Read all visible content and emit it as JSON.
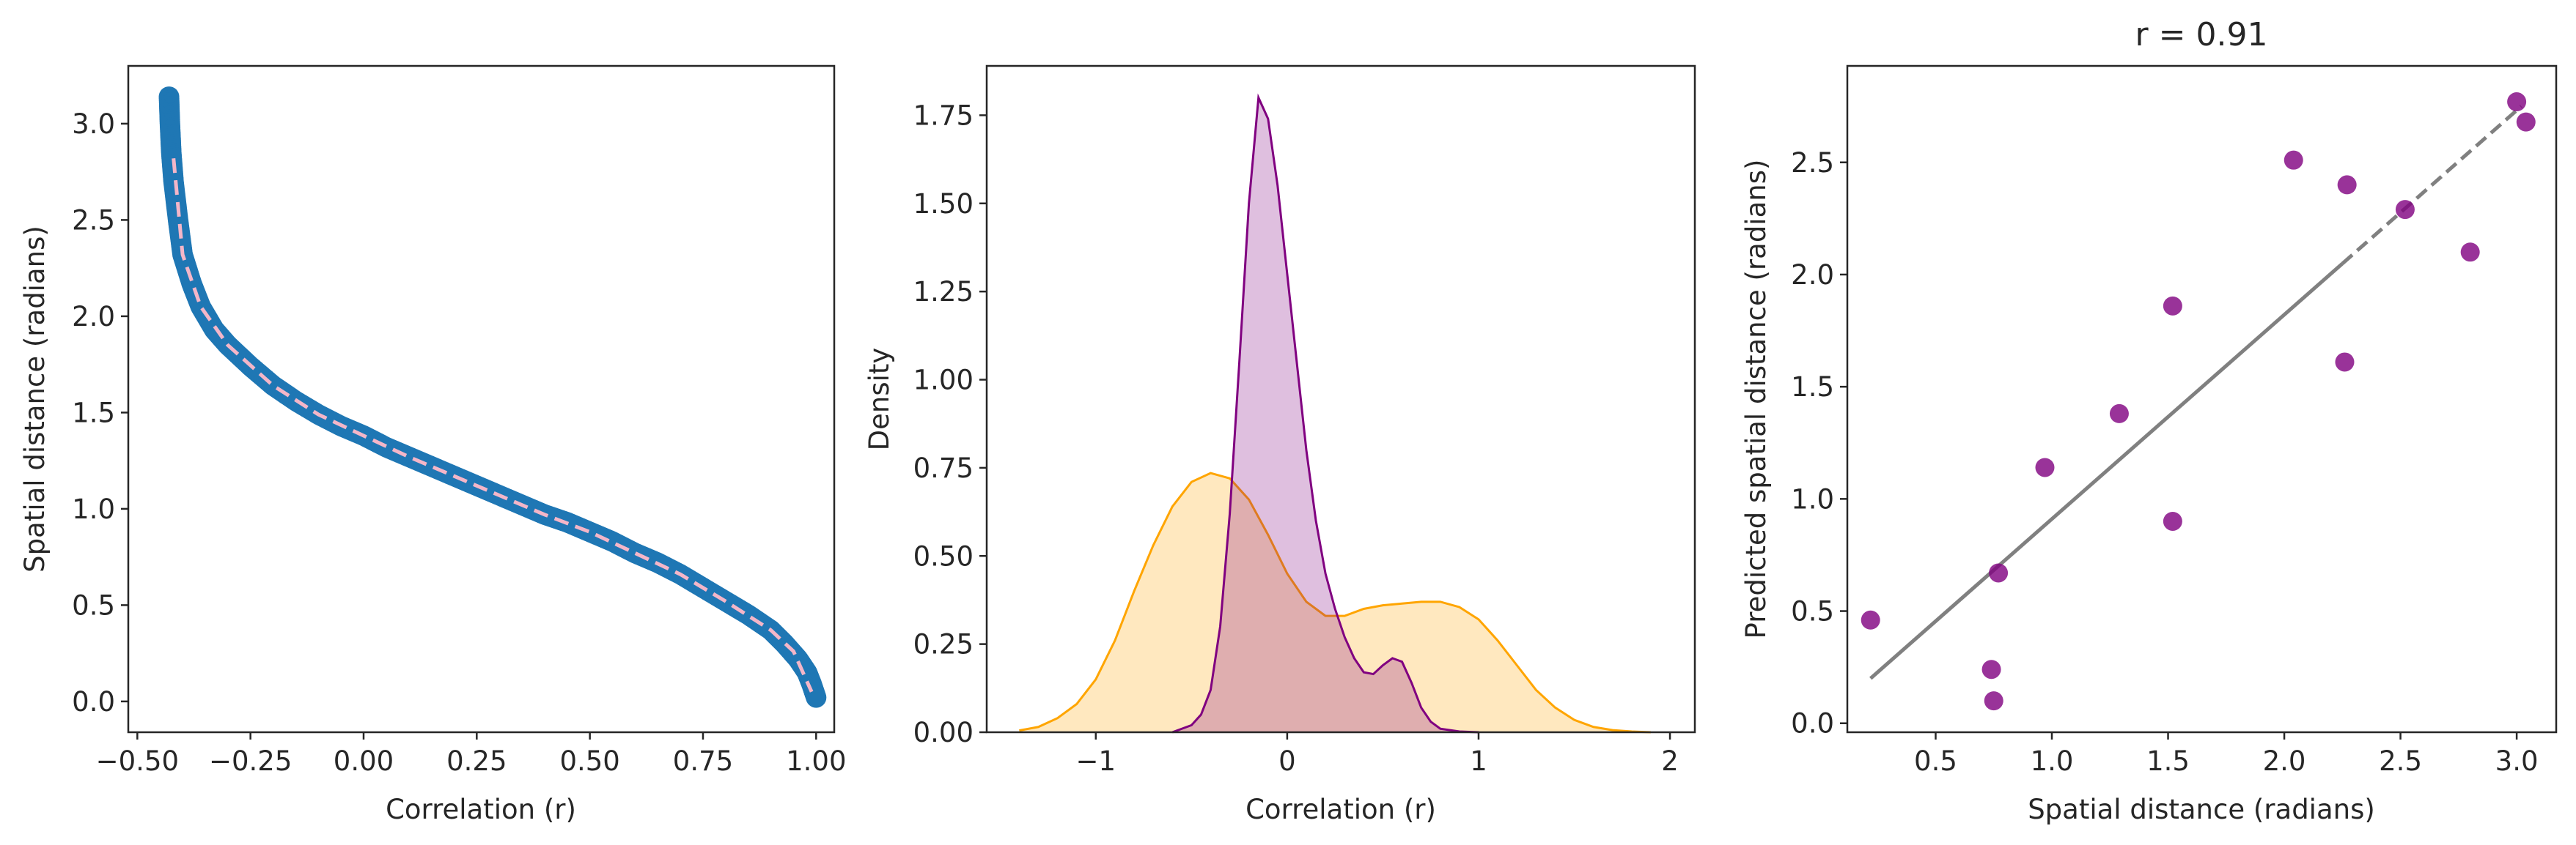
{
  "chart_data": [
    {
      "type": "scatter",
      "title": "",
      "xlabel": "Correlation (r)",
      "ylabel": "Spatial distance (radians)",
      "xlim": [
        -0.52,
        1.04
      ],
      "ylim": [
        -0.16,
        3.3
      ],
      "xticks": [
        -0.5,
        -0.25,
        0.0,
        0.25,
        0.5,
        0.75,
        1.0
      ],
      "xtick_labels": [
        "−0.50",
        "−0.25",
        "0.00",
        "0.25",
        "0.50",
        "0.75",
        "1.00"
      ],
      "yticks": [
        0.0,
        0.5,
        1.0,
        1.5,
        2.0,
        2.5,
        3.0
      ],
      "ytick_labels": [
        "0.0",
        "0.5",
        "1.0",
        "1.5",
        "2.0",
        "2.5",
        "3.0"
      ],
      "grid": false,
      "series": [
        {
          "kind": "scatter",
          "color": "#1f77b4",
          "x": [
            -0.43,
            -0.428,
            -0.425,
            -0.42,
            -0.41,
            -0.4,
            -0.38,
            -0.36,
            -0.33,
            -0.3,
            -0.25,
            -0.2,
            -0.15,
            -0.1,
            -0.05,
            0.0,
            0.05,
            0.1,
            0.15,
            0.2,
            0.25,
            0.3,
            0.35,
            0.4,
            0.45,
            0.5,
            0.55,
            0.6,
            0.65,
            0.7,
            0.75,
            0.8,
            0.85,
            0.9,
            0.93,
            0.96,
            0.98,
            0.99,
            1.0
          ],
          "y": [
            3.14,
            3.0,
            2.85,
            2.7,
            2.5,
            2.32,
            2.17,
            2.05,
            1.93,
            1.85,
            1.74,
            1.64,
            1.56,
            1.49,
            1.43,
            1.38,
            1.32,
            1.27,
            1.22,
            1.17,
            1.12,
            1.07,
            1.02,
            0.97,
            0.93,
            0.88,
            0.83,
            0.77,
            0.72,
            0.66,
            0.59,
            0.52,
            0.45,
            0.37,
            0.3,
            0.22,
            0.15,
            0.09,
            0.02
          ]
        },
        {
          "kind": "line",
          "style": "dashed",
          "color": "#f4b6c8",
          "x": [
            -0.42,
            -0.4,
            -0.36,
            -0.3,
            -0.2,
            -0.1,
            0.0,
            0.1,
            0.2,
            0.3,
            0.4,
            0.5,
            0.6,
            0.7,
            0.8,
            0.9,
            0.95,
            0.99
          ],
          "y": [
            2.82,
            2.32,
            2.05,
            1.85,
            1.64,
            1.49,
            1.38,
            1.27,
            1.17,
            1.07,
            0.97,
            0.88,
            0.77,
            0.66,
            0.52,
            0.37,
            0.26,
            0.05
          ]
        }
      ]
    },
    {
      "type": "area",
      "title": "",
      "xlabel": "Correlation (r)",
      "ylabel": "Density",
      "xlim": [
        -1.57,
        2.13
      ],
      "ylim": [
        0,
        1.89
      ],
      "xticks": [
        -1,
        0,
        1,
        2
      ],
      "xtick_labels": [
        "−1",
        "0",
        "1",
        "2"
      ],
      "yticks": [
        0.0,
        0.25,
        0.5,
        0.75,
        1.0,
        1.25,
        1.5,
        1.75
      ],
      "ytick_labels": [
        "0.00",
        "0.25",
        "0.50",
        "0.75",
        "1.00",
        "1.25",
        "1.50",
        "1.75"
      ],
      "grid": false,
      "series": [
        {
          "color": "#ffa500",
          "x": [
            -1.4,
            -1.3,
            -1.2,
            -1.1,
            -1.0,
            -0.9,
            -0.8,
            -0.7,
            -0.6,
            -0.5,
            -0.4,
            -0.3,
            -0.2,
            -0.1,
            0.0,
            0.1,
            0.2,
            0.3,
            0.4,
            0.5,
            0.6,
            0.7,
            0.8,
            0.9,
            1.0,
            1.1,
            1.2,
            1.3,
            1.4,
            1.5,
            1.6,
            1.7,
            1.8,
            1.9
          ],
          "y": [
            0.005,
            0.015,
            0.04,
            0.08,
            0.15,
            0.26,
            0.4,
            0.53,
            0.64,
            0.71,
            0.735,
            0.72,
            0.66,
            0.56,
            0.45,
            0.37,
            0.33,
            0.33,
            0.35,
            0.36,
            0.365,
            0.37,
            0.37,
            0.355,
            0.32,
            0.26,
            0.19,
            0.12,
            0.07,
            0.035,
            0.015,
            0.006,
            0.002,
            0.0
          ]
        },
        {
          "color": "#800080",
          "x": [
            -0.6,
            -0.5,
            -0.45,
            -0.4,
            -0.35,
            -0.3,
            -0.25,
            -0.2,
            -0.15,
            -0.1,
            -0.05,
            0.0,
            0.05,
            0.1,
            0.15,
            0.2,
            0.25,
            0.3,
            0.35,
            0.4,
            0.45,
            0.5,
            0.55,
            0.6,
            0.65,
            0.7,
            0.75,
            0.8,
            0.9,
            1.0
          ],
          "y": [
            0.0,
            0.02,
            0.05,
            0.12,
            0.3,
            0.62,
            1.05,
            1.5,
            1.8,
            1.74,
            1.55,
            1.3,
            1.05,
            0.8,
            0.6,
            0.45,
            0.35,
            0.27,
            0.21,
            0.17,
            0.165,
            0.19,
            0.21,
            0.2,
            0.14,
            0.07,
            0.03,
            0.01,
            0.002,
            0.0
          ]
        }
      ]
    },
    {
      "type": "scatter",
      "title": "r = 0.91",
      "xlabel": "Spatial distance (radians)",
      "ylabel": "Predicted spatial distance (radians)",
      "xlim": [
        0.12,
        3.17
      ],
      "ylim": [
        -0.04,
        2.93
      ],
      "xticks": [
        0.5,
        1.0,
        1.5,
        2.0,
        2.5,
        3.0
      ],
      "xtick_labels": [
        "0.5",
        "1.0",
        "1.5",
        "2.0",
        "2.5",
        "3.0"
      ],
      "yticks": [
        0.0,
        0.5,
        1.0,
        1.5,
        2.0,
        2.5
      ],
      "ytick_labels": [
        "0.0",
        "0.5",
        "1.0",
        "1.5",
        "2.0",
        "2.5"
      ],
      "grid": false,
      "points": {
        "color": "#800080",
        "x": [
          0.22,
          0.74,
          0.75,
          0.77,
          0.97,
          1.29,
          1.52,
          1.52,
          2.04,
          2.26,
          2.27,
          2.52,
          2.8,
          3.0,
          3.04
        ],
        "y": [
          0.46,
          0.24,
          0.1,
          0.67,
          1.14,
          1.38,
          0.9,
          1.86,
          2.51,
          1.61,
          2.4,
          2.29,
          2.1,
          2.77,
          2.68
        ]
      },
      "fit_line": {
        "color": "#808080",
        "x": [
          0.22,
          3.02
        ],
        "y": [
          0.2,
          2.75
        ],
        "dashed_from_x": 2.25
      }
    }
  ]
}
